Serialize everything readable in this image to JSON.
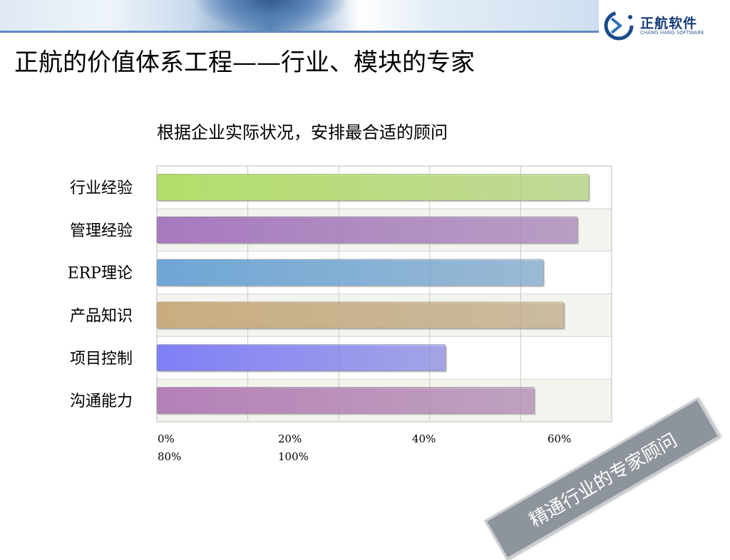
{
  "slide": {
    "title": "正航的价值体系工程——行业、模块的专家",
    "stamp_text": "精通行业的专家顾问"
  },
  "logo": {
    "name": "正航软件",
    "sub": "CHANG HANG SOFTWARE"
  },
  "chart_data": {
    "type": "bar",
    "orientation": "horizontal",
    "title": "根据企业实际状况，安排最合适的顾问",
    "categories": [
      "行业经验",
      "管理经验",
      "ERP理论",
      "产品知识",
      "项目控制",
      "沟通能力"
    ],
    "values": [
      95,
      92.5,
      85,
      89.5,
      63.5,
      83
    ],
    "colors": [
      "#b3de6a",
      "#a779bf",
      "#6ea6d6",
      "#c9ad7f",
      "#7f7ff7",
      "#b580b7"
    ],
    "tick_labels": [
      "0%",
      "20%",
      "40%",
      "60%",
      "80%",
      "100%"
    ],
    "xlim": [
      0,
      100
    ],
    "grid": true
  }
}
